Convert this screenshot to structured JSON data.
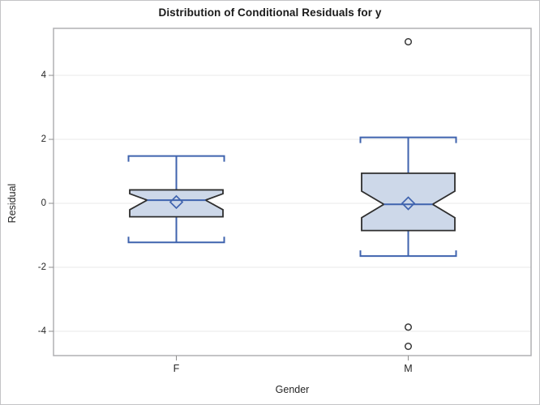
{
  "chart_data": {
    "type": "boxplot",
    "title": "Distribution of Conditional Residuals for y",
    "xlabel": "Gender",
    "ylabel": "Residual",
    "categories": [
      "F",
      "M"
    ],
    "yticks": [
      4,
      2,
      0,
      -2,
      -4
    ],
    "ytick_labels": [
      "4",
      "2",
      "0",
      "-2",
      "-4"
    ],
    "ylim": [
      -4.76,
      5.47
    ],
    "grid": "horizontal-light",
    "notched": true,
    "legend": "none",
    "series": [
      {
        "category": "F",
        "whisker_low": -1.22,
        "q1": -0.42,
        "median": 0.1,
        "q3": 0.42,
        "whisker_high": 1.48,
        "notch_low": -0.2,
        "notch_high": 0.3,
        "mean": 0.04,
        "outliers": []
      },
      {
        "category": "M",
        "whisker_low": -1.65,
        "q1": -0.85,
        "median": -0.03,
        "q3": 0.94,
        "whisker_high": 2.06,
        "notch_low": -0.45,
        "notch_high": 0.38,
        "mean": 0.0,
        "outliers": [
          5.05,
          -3.87,
          -4.47
        ]
      }
    ],
    "colors": {
      "box_fill": "#cdd8e9",
      "box_border": "#2e2e2e",
      "whisker": "#3f63ae",
      "median": "#3f63ae",
      "mean_marker": "#3f63ae",
      "outlier": "#383838",
      "gridline": "#e9e9e9",
      "plot_border": "#b0b0b3",
      "tick": "#8f8f8f"
    }
  }
}
